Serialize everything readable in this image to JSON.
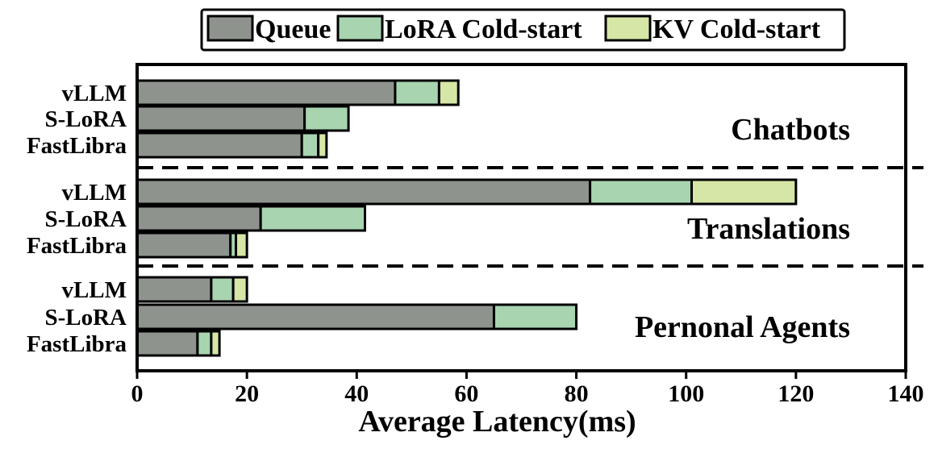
{
  "chart_data": {
    "type": "bar",
    "orientation": "horizontal",
    "stacked": true,
    "xlabel": "Average Latency(ms)",
    "ylabel": "",
    "xlim": [
      0,
      140
    ],
    "xticks": [
      0,
      20,
      40,
      60,
      80,
      100,
      120,
      140
    ],
    "legend_position": "top",
    "series": [
      {
        "name": "Queue",
        "color": "#8e938d"
      },
      {
        "name": "LoRA Cold-start",
        "color": "#a8d4b0"
      },
      {
        "name": "KV Cold-start",
        "color": "#d5e6a6"
      }
    ],
    "groups": [
      {
        "name": "Chatbots",
        "bars": [
          {
            "label": "vLLM",
            "values": [
              47,
              8,
              3.5
            ]
          },
          {
            "label": "S-LoRA",
            "values": [
              30.5,
              8,
              0
            ]
          },
          {
            "label": "FastLibra",
            "values": [
              30,
              3,
              1.5
            ]
          }
        ]
      },
      {
        "name": "Translations",
        "bars": [
          {
            "label": "vLLM",
            "values": [
              82.5,
              18.5,
              19
            ]
          },
          {
            "label": "S-LoRA",
            "values": [
              22.5,
              19,
              0
            ]
          },
          {
            "label": "FastLibra",
            "values": [
              17,
              1,
              2
            ]
          }
        ]
      },
      {
        "name": "Pernonal Agents",
        "bars": [
          {
            "label": "vLLM",
            "values": [
              13.5,
              4,
              2.5
            ]
          },
          {
            "label": "S-LoRA",
            "values": [
              65,
              15,
              0
            ]
          },
          {
            "label": "FastLibra",
            "values": [
              11,
              2.5,
              1.5
            ]
          }
        ]
      }
    ]
  }
}
